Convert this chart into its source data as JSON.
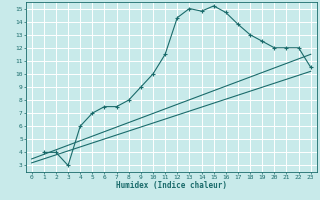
{
  "xlabel": "Humidex (Indice chaleur)",
  "bg_color": "#c8eaea",
  "grid_color": "#ffffff",
  "line_color": "#1a6b6b",
  "xlim": [
    -0.5,
    23.5
  ],
  "ylim": [
    2.5,
    15.5
  ],
  "xticks": [
    0,
    1,
    2,
    3,
    4,
    5,
    6,
    7,
    8,
    9,
    10,
    11,
    12,
    13,
    14,
    15,
    16,
    17,
    18,
    19,
    20,
    21,
    22,
    23
  ],
  "yticks": [
    3,
    4,
    5,
    6,
    7,
    8,
    9,
    10,
    11,
    12,
    13,
    14,
    15
  ],
  "curve1_x": [
    1,
    2,
    3,
    4,
    5,
    6,
    7,
    8,
    9,
    10,
    11,
    12,
    13,
    14,
    15,
    16,
    17,
    18,
    19,
    20,
    21,
    22,
    23
  ],
  "curve1_y": [
    4.0,
    4.0,
    3.0,
    6.0,
    7.0,
    7.5,
    7.5,
    8.0,
    9.0,
    10.0,
    11.5,
    14.3,
    15.0,
    14.8,
    15.2,
    14.7,
    13.8,
    13.0,
    12.5,
    12.0,
    12.0,
    12.0,
    10.5
  ],
  "curve2_x": [
    0,
    23
  ],
  "curve2_y": [
    3.5,
    11.5
  ],
  "curve3_x": [
    0,
    23
  ],
  "curve3_y": [
    3.2,
    10.2
  ],
  "marker": "+"
}
